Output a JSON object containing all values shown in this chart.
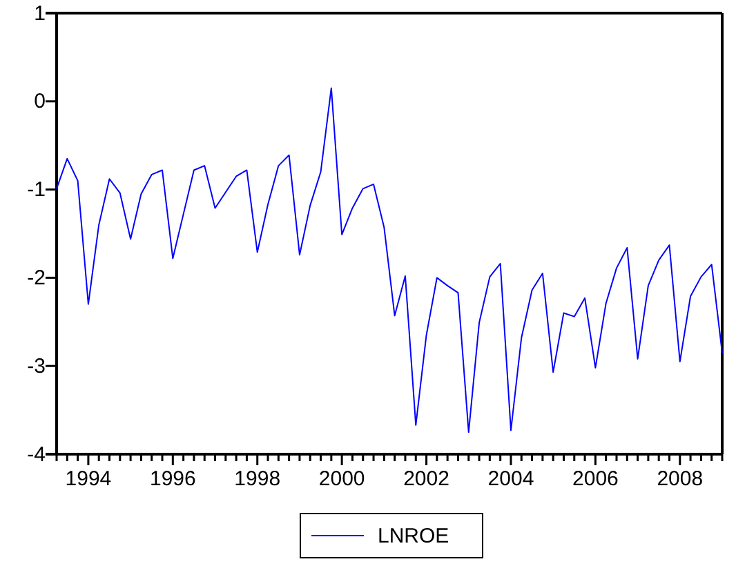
{
  "chart_data": {
    "type": "line",
    "xlim": [
      1993.25,
      2009
    ],
    "ylim": [
      -4,
      1
    ],
    "yticks": [
      -4,
      -3,
      -2,
      -1,
      0,
      1
    ],
    "xticks": [
      {
        "value": 1993.25,
        "label": null
      },
      {
        "value": 1993.5,
        "label": null
      },
      {
        "value": 1993.75,
        "label": null
      },
      1994,
      {
        "value": 1994.25,
        "label": null
      },
      {
        "value": 1994.5,
        "label": null
      },
      {
        "value": 1994.75,
        "label": null
      },
      {
        "value": 1995,
        "label": null
      },
      {
        "value": 1995.25,
        "label": null
      },
      {
        "value": 1995.5,
        "label": null
      },
      {
        "value": 1995.75,
        "label": null
      },
      1996,
      {
        "value": 1996.25,
        "label": null
      },
      {
        "value": 1996.5,
        "label": null
      },
      {
        "value": 1996.75,
        "label": null
      },
      {
        "value": 1997,
        "label": null
      },
      {
        "value": 1997.25,
        "label": null
      },
      {
        "value": 1997.5,
        "label": null
      },
      {
        "value": 1997.75,
        "label": null
      },
      1998,
      {
        "value": 1998.25,
        "label": null
      },
      {
        "value": 1998.5,
        "label": null
      },
      {
        "value": 1998.75,
        "label": null
      },
      {
        "value": 1999,
        "label": null
      },
      {
        "value": 1999.25,
        "label": null
      },
      {
        "value": 1999.5,
        "label": null
      },
      {
        "value": 1999.75,
        "label": null
      },
      2000,
      {
        "value": 2000.25,
        "label": null
      },
      {
        "value": 2000.5,
        "label": null
      },
      {
        "value": 2000.75,
        "label": null
      },
      {
        "value": 2001,
        "label": null
      },
      {
        "value": 2001.25,
        "label": null
      },
      {
        "value": 2001.5,
        "label": null
      },
      {
        "value": 2001.75,
        "label": null
      },
      2002,
      {
        "value": 2002.25,
        "label": null
      },
      {
        "value": 2002.5,
        "label": null
      },
      {
        "value": 2002.75,
        "label": null
      },
      {
        "value": 2003,
        "label": null
      },
      {
        "value": 2003.25,
        "label": null
      },
      {
        "value": 2003.5,
        "label": null
      },
      {
        "value": 2003.75,
        "label": null
      },
      2004,
      {
        "value": 2004.25,
        "label": null
      },
      {
        "value": 2004.5,
        "label": null
      },
      {
        "value": 2004.75,
        "label": null
      },
      {
        "value": 2005,
        "label": null
      },
      {
        "value": 2005.25,
        "label": null
      },
      {
        "value": 2005.5,
        "label": null
      },
      {
        "value": 2005.75,
        "label": null
      },
      2006,
      {
        "value": 2006.25,
        "label": null
      },
      {
        "value": 2006.5,
        "label": null
      },
      {
        "value": 2006.75,
        "label": null
      },
      {
        "value": 2007,
        "label": null
      },
      {
        "value": 2007.25,
        "label": null
      },
      {
        "value": 2007.5,
        "label": null
      },
      {
        "value": 2007.75,
        "label": null
      },
      2008,
      {
        "value": 2008.25,
        "label": null
      },
      {
        "value": 2008.5,
        "label": null
      },
      {
        "value": 2008.75,
        "label": null
      },
      {
        "value": 2009,
        "label": null
      }
    ],
    "x": [
      1993.25,
      1993.5,
      1993.75,
      1994,
      1994.25,
      1994.5,
      1994.75,
      1995,
      1995.25,
      1995.5,
      1995.75,
      1996,
      1996.25,
      1996.5,
      1996.75,
      1997,
      1997.25,
      1997.5,
      1997.75,
      1998,
      1998.25,
      1998.5,
      1998.75,
      1999,
      1999.25,
      1999.5,
      1999.75,
      2000,
      2000.25,
      2000.5,
      2000.75,
      2001,
      2001.25,
      2001.5,
      2001.75,
      2002,
      2002.25,
      2002.5,
      2002.75,
      2003,
      2003.25,
      2003.5,
      2003.75,
      2004,
      2004.25,
      2004.5,
      2004.75,
      2005,
      2005.25,
      2005.5,
      2005.75,
      2006,
      2006.25,
      2006.5,
      2006.75,
      2007,
      2007.25,
      2007.5,
      2007.75,
      2008,
      2008.25,
      2008.5,
      2008.75,
      2009
    ],
    "series": [
      {
        "name": "LNROE",
        "color": "#0000ff",
        "values": [
          -0.99,
          -0.65,
          -0.9,
          -2.3,
          -1.4,
          -0.88,
          -1.04,
          -1.56,
          -1.05,
          -0.83,
          -0.78,
          -1.78,
          -1.28,
          -0.78,
          -0.73,
          -1.21,
          -1.03,
          -0.85,
          -0.78,
          -1.71,
          -1.17,
          -0.73,
          -0.61,
          -1.74,
          -1.18,
          -0.8,
          0.15,
          -1.51,
          -1.21,
          -0.99,
          -0.94,
          -1.43,
          -2.43,
          -1.98,
          -3.67,
          -2.65,
          -2,
          -2.09,
          -2.17,
          -3.75,
          -2.51,
          -1.99,
          -1.84,
          -3.73,
          -2.68,
          -2.14,
          -1.95,
          -3.07,
          -2.4,
          -2.44,
          -2.23,
          -3.02,
          -2.29,
          -1.89,
          -1.66,
          -2.92,
          -2.09,
          -1.8,
          -1.63,
          -2.95,
          -2.21,
          -1.99,
          -1.85,
          -2.85
        ]
      }
    ],
    "legend": "bottom",
    "grid": false
  }
}
